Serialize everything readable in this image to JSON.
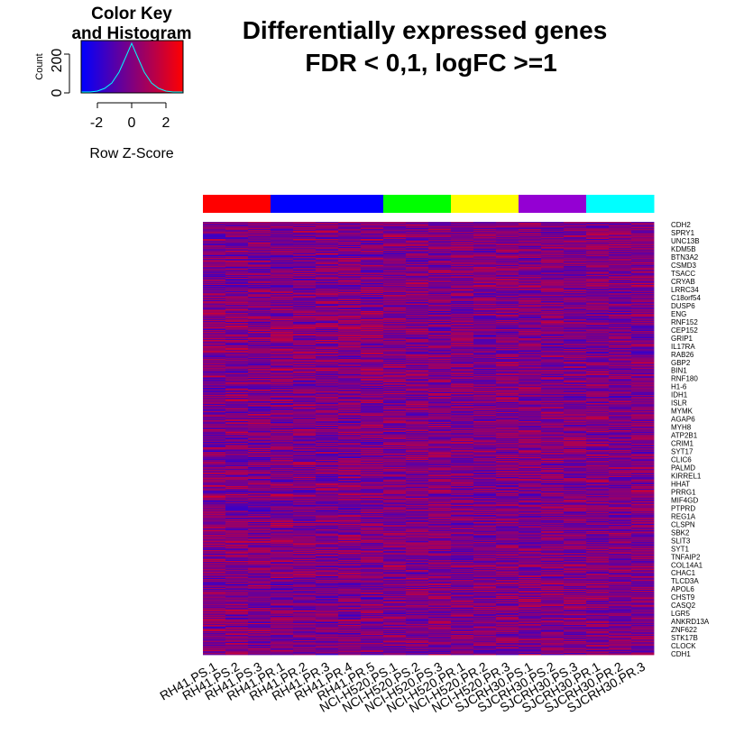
{
  "chart_data": {
    "type": "heatmap",
    "title": "Differentially expressed genes",
    "subtitle": "FDR < 0,1, logFC >=1",
    "columns": [
      "RH41.PS.1",
      "RH41.PS.2",
      "RH41.PS.3",
      "RH41.PR.1",
      "RH41.PR.2",
      "RH41.PR.3",
      "RH41.PR.4",
      "RH41.PR.5",
      "NCI-H520.PS.1",
      "NCI-H520.PS.2",
      "NCI-H520.PS.3",
      "NCI-H520.PR.1",
      "NCI-H520.PR.2",
      "NCI-H520.PR.3",
      "SJCRH30.PS.1",
      "SJCRH30.PS.2",
      "SJCRH30.PS.3",
      "SJCRH30.PR.1",
      "SJCRH30.PR.2",
      "SJCRH30.PR.3"
    ],
    "column_groups": [
      {
        "color": "#ff0000",
        "count": 3
      },
      {
        "color": "#0000ff",
        "count": 5
      },
      {
        "color": "#00ff00",
        "count": 3
      },
      {
        "color": "#ffff00",
        "count": 3
      },
      {
        "color": "#9400d3",
        "count": 3
      },
      {
        "color": "#00ffff",
        "count": 3
      }
    ],
    "row_labels": [
      "CDH2",
      "SPRY1",
      "UNC13B",
      "KDM5B",
      "BTN3A2",
      "CSMD3",
      "TSACC",
      "CRYAB",
      "LRRC34",
      "C18orf54",
      "DUSP6",
      "ENG",
      "RNF152",
      "CEP152",
      "GRIP1",
      "IL17RA",
      "RAB26",
      "GBP2",
      "BIN1",
      "RNF180",
      "H1-6",
      "IDH1",
      "ISLR",
      "MYMK",
      "AGAP6",
      "MYH8",
      "ATP2B1",
      "CRIM1",
      "SYT17",
      "CLIC6",
      "PALMD",
      "KIRREL1",
      "HHAT",
      "PRRG1",
      "MIF4GD",
      "PTPRD",
      "REG1A",
      "CLSPN",
      "SBK2",
      "SLIT3",
      "SYT1",
      "TNFAIP2",
      "COL14A1",
      "CHAC1",
      "TLCD3A",
      "APOL6",
      "CHST9",
      "CASQ2",
      "LGR5",
      "ANKRD13A",
      "ZNF622",
      "STK17B",
      "CLOCK",
      "CDH1"
    ],
    "color_scale": {
      "low": "#0000ff",
      "mid": "#800080",
      "high": "#ff0000"
    },
    "color_key": {
      "title": "Color Key\nand Histogram",
      "title_lines": [
        "Color Key",
        "and Histogram"
      ],
      "xlabel": "Row Z-Score",
      "ylabel": "Count",
      "xticks": [
        "-2",
        "0",
        "2"
      ],
      "yticks": [
        "0",
        "200"
      ],
      "xlim": [
        -3,
        3
      ],
      "ylim": [
        0,
        300
      ]
    },
    "approx_row_count": 480
  }
}
